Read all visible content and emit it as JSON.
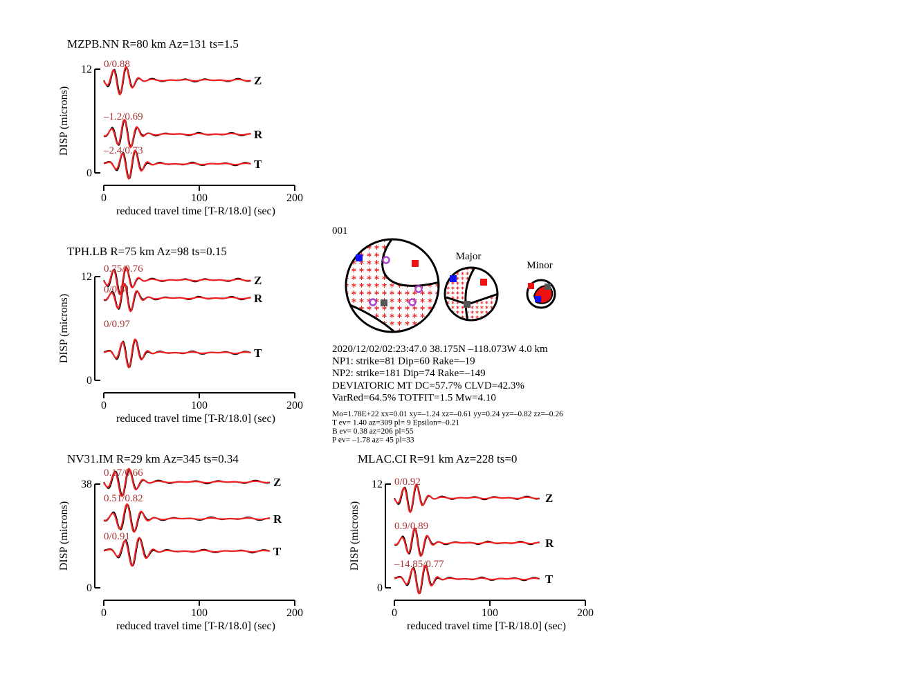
{
  "panels": [
    {
      "title": "MZPB.NN R=80 km Az=131 ts=1.5",
      "ylabel": "DISP (microns)",
      "xlabel": "reduced travel time [T-R/18.0] (sec)",
      "xlim": [
        0,
        200
      ],
      "xticks": [
        0,
        100,
        200
      ],
      "ylim": [
        0,
        12
      ],
      "yticks": [
        0,
        12
      ],
      "traces": [
        {
          "component": "Z",
          "fit": "0/0.88"
        },
        {
          "component": "R",
          "fit": "–1.2/0.69"
        },
        {
          "component": "T",
          "fit": "–2.4/0.73"
        }
      ]
    },
    {
      "title": "TPH.LB R=75 km Az=98 ts=0.15",
      "ylabel": "DISP (microns)",
      "xlabel": "reduced travel time [T-R/18.0] (sec)",
      "xlim": [
        0,
        200
      ],
      "xticks": [
        0,
        100,
        200
      ],
      "ylim": [
        0,
        12
      ],
      "yticks": [
        0,
        12
      ],
      "traces": [
        {
          "component": "Z",
          "fit": "0.75/0.76"
        },
        {
          "component": "R",
          "fit": "0/0.51"
        },
        {
          "component": "T",
          "fit": "0/0.97"
        }
      ]
    },
    {
      "title": "NV31.IM R=29 km Az=345 ts=0.34",
      "ylabel": "DISP (microns)",
      "xlabel": "reduced travel time [T-R/18.0] (sec)",
      "xlim": [
        0,
        200
      ],
      "xticks": [
        0,
        100,
        200
      ],
      "ylim": [
        0,
        38
      ],
      "yticks": [
        0,
        38
      ],
      "traces": [
        {
          "component": "Z",
          "fit": "0.17/0.66"
        },
        {
          "component": "R",
          "fit": "0.51/0.82"
        },
        {
          "component": "T",
          "fit": "0/0.91"
        }
      ]
    },
    {
      "title": "MLAC.CI R=91 km Az=228 ts=0",
      "ylabel": "DISP (microns)",
      "xlabel": "reduced travel time [T-R/18.0] (sec)",
      "xlim": [
        0,
        200
      ],
      "xticks": [
        0,
        100,
        200
      ],
      "ylim": [
        0,
        12
      ],
      "yticks": [
        0,
        12
      ],
      "traces": [
        {
          "component": "Z",
          "fit": "0/0.92"
        },
        {
          "component": "R",
          "fit": "0.9/0.89"
        },
        {
          "component": "T",
          "fit": "–14.85/0.77"
        }
      ]
    }
  ],
  "mechanism": {
    "id": "001",
    "major": "Major",
    "minor": "Minor",
    "info": [
      "2020/12/02/02:23:47.0 38.175N –118.073W 4.0 km",
      "NP1: strike=81 Dip=60 Rake=–19",
      "NP2: strike=181 Dip=74 Rake=–149",
      "DEVIATORIC MT DC=57.7% CLVD=42.3%",
      "VarRed=64.5% TOTFIT=1.5 Mw=4.10"
    ],
    "moment": [
      "Mo=1.78E+22 xx=0.01 xy=–1.24 xz=–0.61 yy=0.24 yz=–0.82 zz=–0.26",
      "T ev=  1.40 az=309 pl= 9 Epsilon=–0.21",
      "B ev=  0.38 az=206 pl=55",
      "P ev= –1.78 az= 45 pl=33"
    ]
  }
}
